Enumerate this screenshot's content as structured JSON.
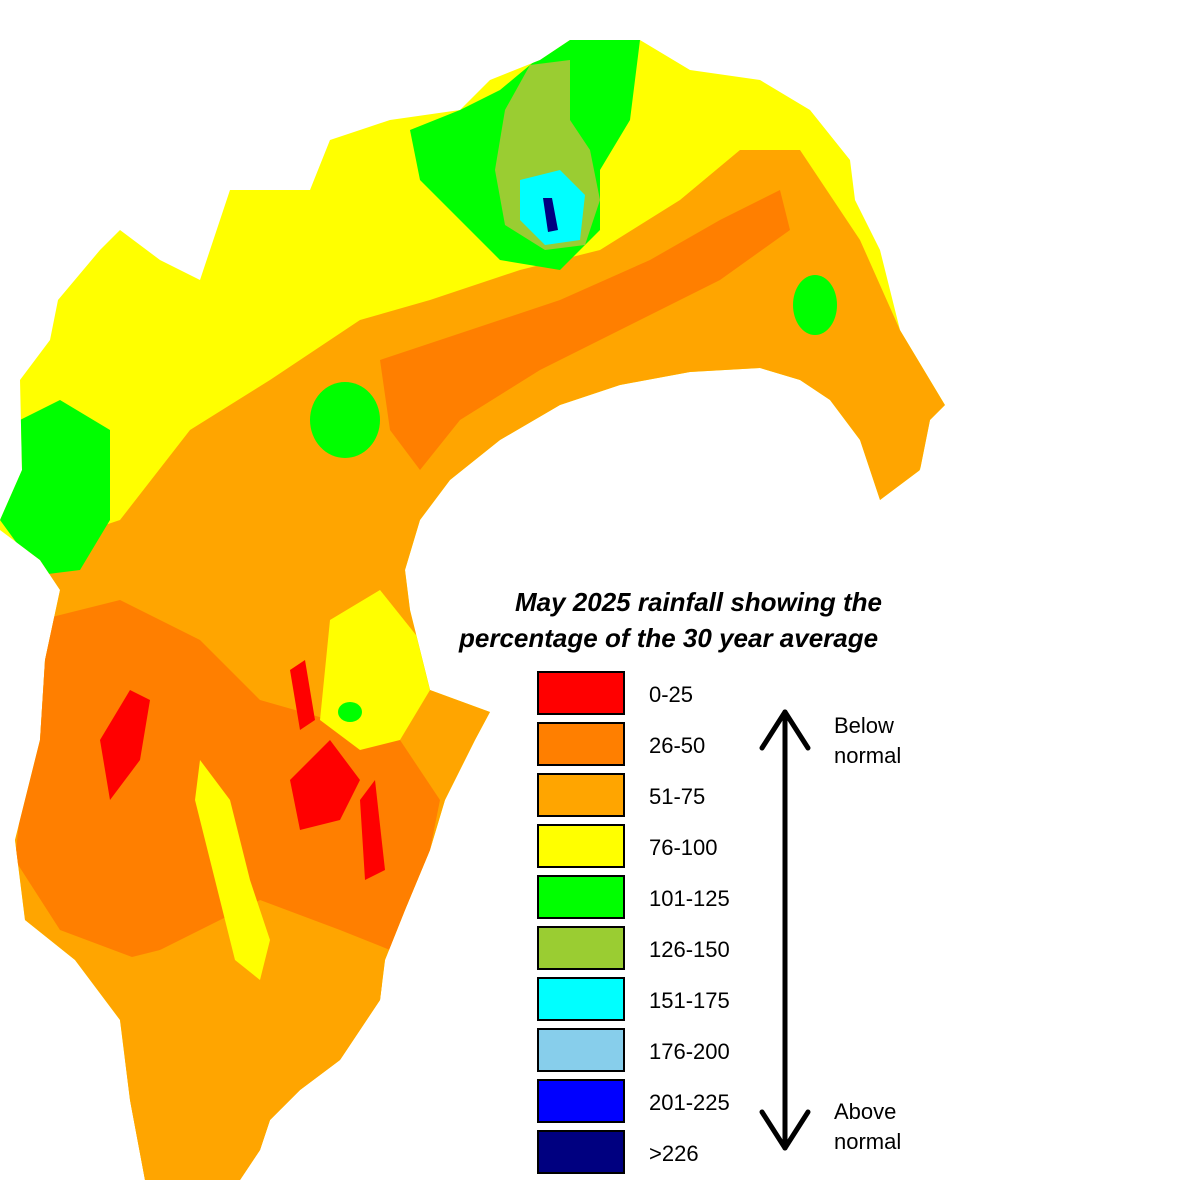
{
  "title": {
    "line1": "May 2025 rainfall showing the",
    "line2": "percentage of the 30 year average"
  },
  "legend": {
    "classes": [
      {
        "label": "0-25",
        "color": "#ff0000"
      },
      {
        "label": "26-50",
        "color": "#ff7f00"
      },
      {
        "label": "51-75",
        "color": "#ffa500"
      },
      {
        "label": "76-100",
        "color": "#ffff00"
      },
      {
        "label": "101-125",
        "color": "#00ff00"
      },
      {
        "label": "126-150",
        "color": "#9acd32"
      },
      {
        "label": "151-175",
        "color": "#00ffff"
      },
      {
        "label": "176-200",
        "color": "#87ceeb"
      },
      {
        "label": "201-225",
        "color": "#0000ff"
      },
      {
        "label": ">226",
        "color": "#000080"
      }
    ]
  },
  "scale": {
    "below_line1": "Below",
    "below_line2": "normal",
    "above_line1": "Above",
    "above_line2": "normal"
  }
}
